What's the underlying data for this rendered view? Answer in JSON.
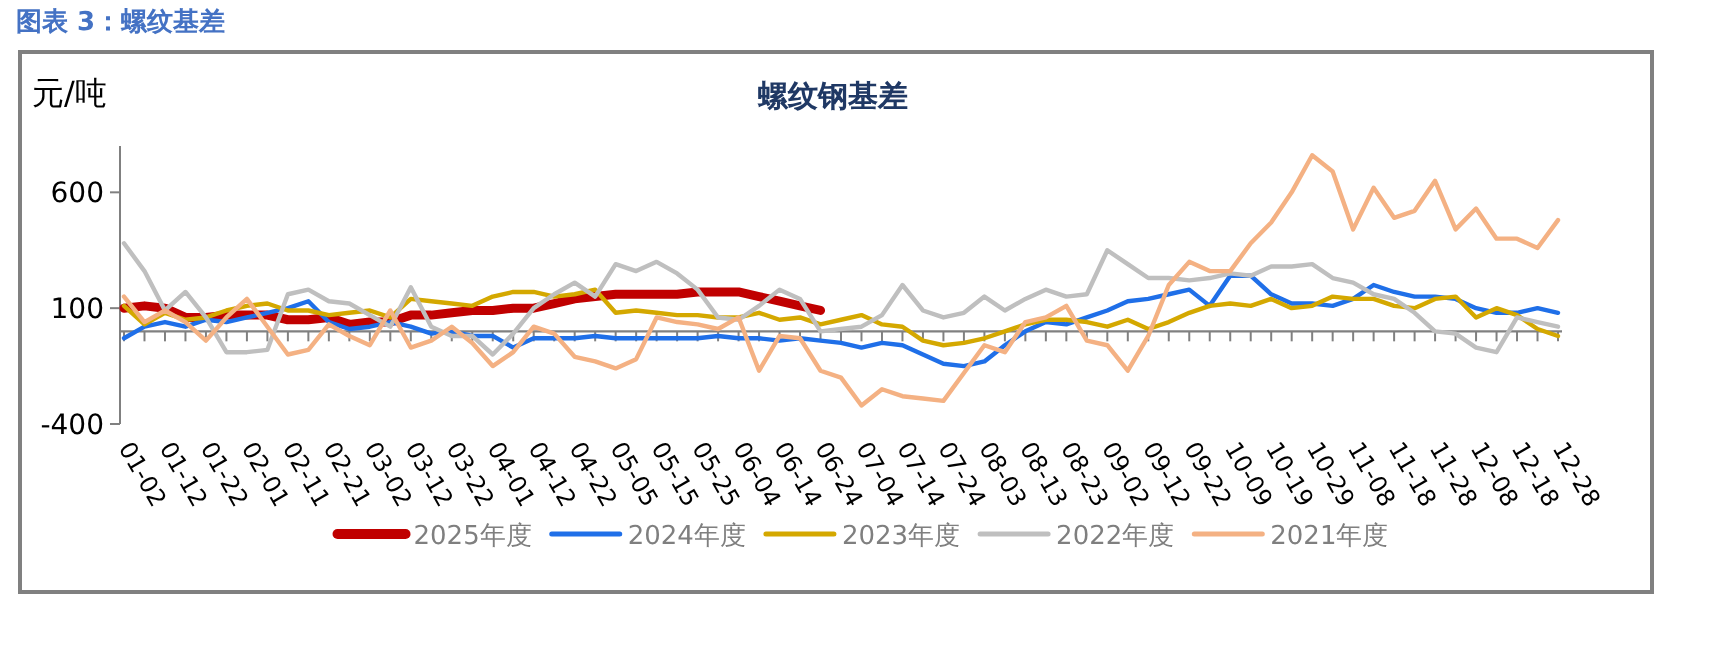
{
  "chart_data": {
    "type": "line",
    "title": "螺纹钢基差",
    "ylabel": "元/吨",
    "annotations": [
      "图表 3：螺纹基差"
    ],
    "categories": [
      "01-02",
      null,
      "01-12",
      null,
      "01-22",
      null,
      "02-01",
      null,
      "02-11",
      null,
      "02-21",
      null,
      "03-02",
      null,
      "03-12",
      null,
      "03-22",
      null,
      "04-01",
      null,
      "04-12",
      null,
      "04-22",
      null,
      "05-05",
      null,
      "05-15",
      null,
      "05-25",
      null,
      "06-04",
      null,
      "06-14",
      null,
      "06-24",
      null,
      "07-04",
      null,
      "07-14",
      null,
      "07-24",
      null,
      "08-03",
      null,
      "08-13",
      null,
      "08-23",
      null,
      "09-02",
      null,
      "09-12",
      null,
      "09-22",
      null,
      "10-09",
      null,
      "10-19",
      null,
      "10-29",
      null,
      "11-08",
      null,
      "11-18",
      null,
      "11-28",
      null,
      "12-08",
      null,
      "12-18",
      null,
      "12-28"
    ],
    "series": [
      {
        "name": "2025年度",
        "color": "#c00000",
        "values": [
          100,
          110,
          100,
          60,
          60,
          70,
          70,
          70,
          50,
          50,
          60,
          30,
          40,
          40,
          70,
          70,
          80,
          90,
          90,
          100,
          100,
          120,
          140,
          150,
          160,
          160,
          160,
          160,
          170,
          170,
          170,
          150,
          130,
          110,
          90,
          null,
          null,
          null,
          null,
          null,
          null,
          null,
          null,
          null,
          null,
          null,
          null,
          null,
          null,
          null,
          null,
          null,
          null,
          null,
          null,
          null,
          null,
          null,
          null,
          null,
          null,
          null,
          null,
          null,
          null,
          null,
          null,
          null,
          null,
          null,
          null
        ]
      },
      {
        "name": "2024年度",
        "color": "#1f6fe8",
        "values": [
          -30,
          20,
          40,
          20,
          50,
          40,
          60,
          80,
          100,
          130,
          40,
          10,
          20,
          40,
          20,
          -10,
          0,
          -20,
          -20,
          -70,
          -30,
          -30,
          -30,
          -20,
          -30,
          -30,
          -30,
          -30,
          -30,
          -20,
          -30,
          -30,
          -40,
          -30,
          -40,
          -50,
          -70,
          -50,
          -60,
          -100,
          -140,
          -150,
          -130,
          -60,
          0,
          40,
          30,
          60,
          90,
          130,
          140,
          160,
          180,
          110,
          240,
          240,
          160,
          120,
          120,
          110,
          140,
          200,
          170,
          150,
          150,
          140,
          100,
          80,
          80,
          100,
          80
        ]
      },
      {
        "name": "2023年度",
        "color": "#d4a800",
        "values": [
          110,
          30,
          80,
          50,
          60,
          90,
          110,
          120,
          90,
          90,
          70,
          80,
          90,
          60,
          140,
          130,
          120,
          110,
          150,
          170,
          170,
          150,
          160,
          180,
          80,
          90,
          80,
          70,
          70,
          60,
          60,
          80,
          50,
          60,
          30,
          50,
          70,
          30,
          20,
          -40,
          -60,
          -50,
          -30,
          0,
          30,
          50,
          50,
          40,
          20,
          50,
          10,
          40,
          80,
          110,
          120,
          110,
          140,
          100,
          110,
          150,
          140,
          140,
          110,
          100,
          140,
          150,
          60,
          100,
          70,
          10,
          -20
        ]
      },
      {
        "name": "2022年度",
        "color": "#bfbfbf",
        "values": [
          380,
          260,
          90,
          170,
          60,
          -90,
          -90,
          -80,
          160,
          180,
          130,
          120,
          70,
          20,
          190,
          20,
          -20,
          -20,
          -100,
          -10,
          100,
          160,
          210,
          150,
          290,
          260,
          300,
          250,
          180,
          60,
          50,
          110,
          180,
          140,
          0,
          10,
          20,
          70,
          200,
          90,
          60,
          80,
          150,
          90,
          140,
          180,
          150,
          160,
          350,
          290,
          230,
          230,
          220,
          230,
          250,
          240,
          280,
          280,
          290,
          230,
          210,
          160,
          140,
          80,
          0,
          -10,
          -70,
          -90,
          60,
          40,
          20
        ]
      },
      {
        "name": "2021年度",
        "color": "#f4b183",
        "values": [
          150,
          40,
          90,
          40,
          -40,
          60,
          140,
          20,
          -100,
          -80,
          30,
          -20,
          -60,
          90,
          -70,
          -40,
          20,
          -50,
          -150,
          -90,
          20,
          -10,
          -110,
          -130,
          -160,
          -120,
          60,
          40,
          30,
          10,
          60,
          -170,
          -20,
          -30,
          -170,
          -200,
          -320,
          -250,
          -280,
          -290,
          -300,
          -180,
          -60,
          -90,
          40,
          60,
          110,
          -40,
          -60,
          -170,
          -20,
          200,
          300,
          260,
          260,
          380,
          470,
          600,
          760,
          690,
          440,
          620,
          490,
          520,
          650,
          440,
          530,
          400,
          400,
          360,
          480
        ]
      }
    ],
    "ylim": [
      -400,
      800
    ],
    "yticks": [
      -400,
      100,
      600
    ],
    "legend": "bottom"
  }
}
